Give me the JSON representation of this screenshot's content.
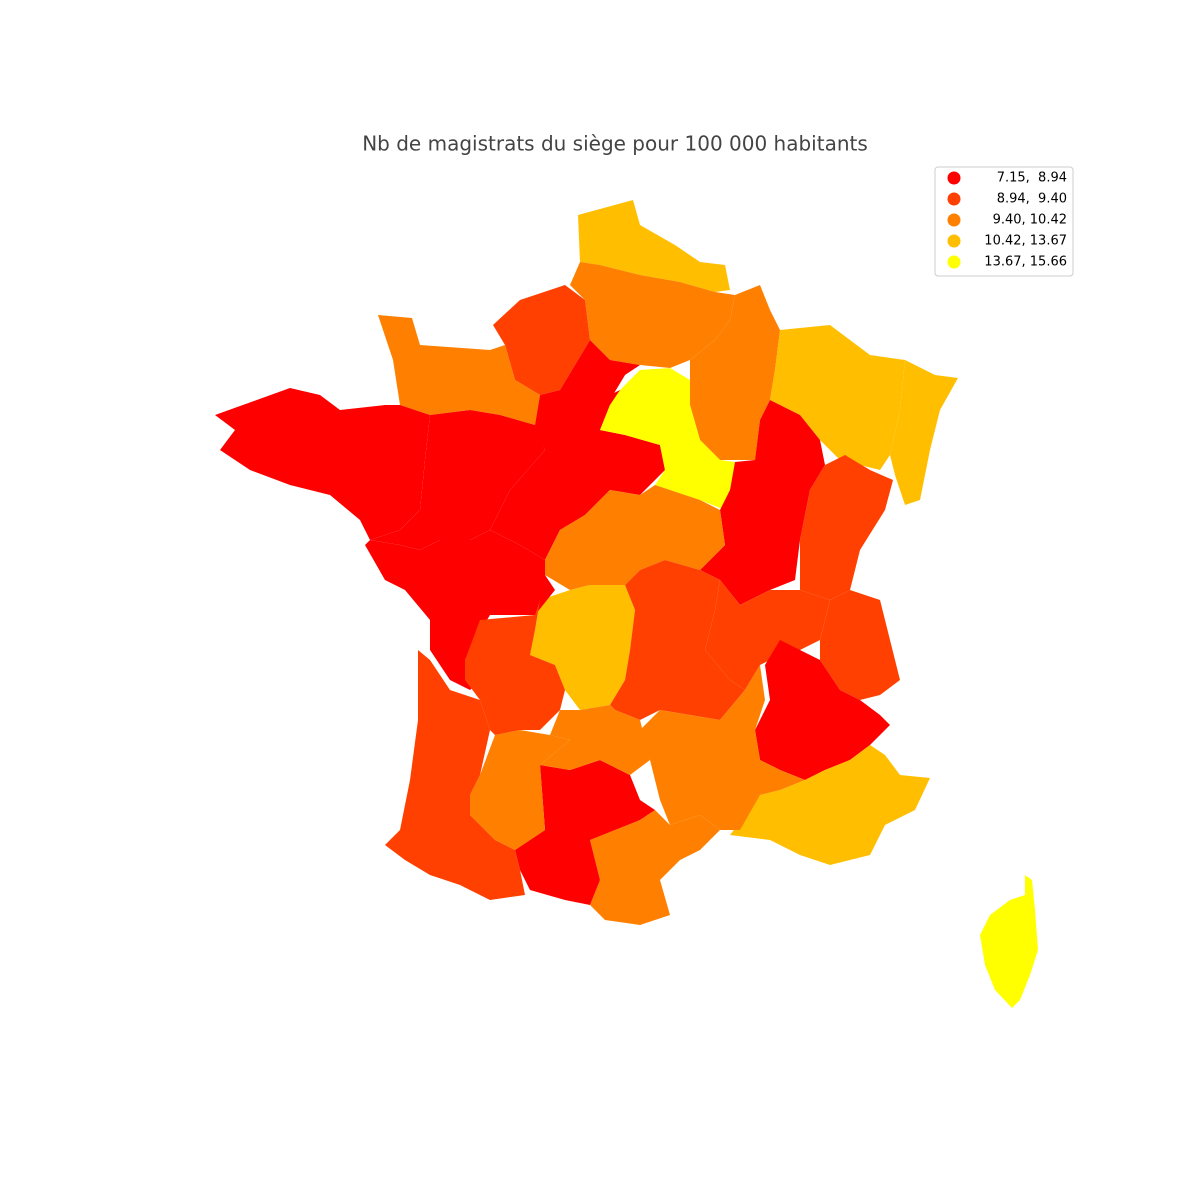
{
  "title": "Nb de magistrats du siège pour 100 000 habitants",
  "legend": {
    "items": [
      {
        "label": "7.15,  8.94",
        "color": "#ff0000"
      },
      {
        "label": "8.94,  9.40",
        "color": "#ff4000"
      },
      {
        "label": "9.40, 10.42",
        "color": "#ff8000"
      },
      {
        "label": "10.42, 13.67",
        "color": "#ffbf00"
      },
      {
        "label": "13.67, 15.66",
        "color": "#ffff00"
      }
    ]
  }
}
